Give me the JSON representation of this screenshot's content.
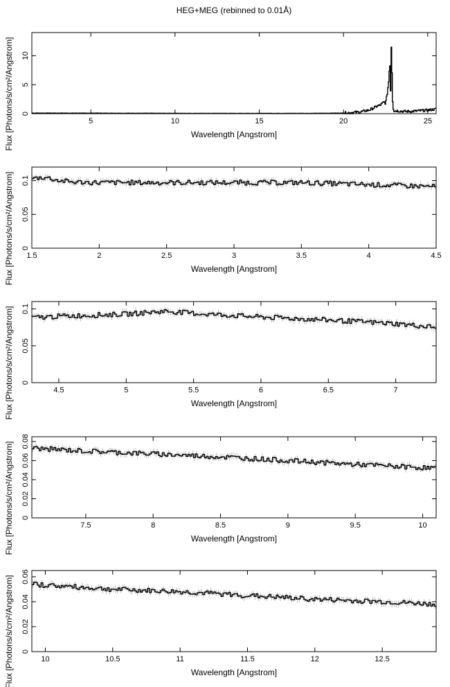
{
  "title": "HEG+MEG (rebinned to 0.01Å)",
  "chart_data": [
    {
      "type": "line",
      "xlabel": "Wavelength [Angstrom]",
      "ylabel": "Flux [Photons/s/cm²/Angstrom]",
      "xlim": [
        1.5,
        25.5
      ],
      "ylim": [
        0,
        14
      ],
      "xticks": [
        5,
        10,
        15,
        20,
        25
      ],
      "yticks": [
        0,
        5,
        10
      ],
      "series": [
        {
          "x": [
            1.5,
            5,
            10,
            15,
            18,
            20,
            20.5,
            21,
            21.5,
            21.8,
            22.0,
            22.2,
            22.4,
            22.5,
            22.6,
            22.7,
            22.75,
            22.8,
            22.85,
            22.9,
            22.95,
            23.0,
            23.2,
            23.5,
            24,
            24.5,
            25,
            25.5
          ],
          "y": [
            0.1,
            0.09,
            0.06,
            0.05,
            0.05,
            0.1,
            0.2,
            0.3,
            0.6,
            1.0,
            1.3,
            1.5,
            2.0,
            1.8,
            3.5,
            6.0,
            9.5,
            4.0,
            13.5,
            3.0,
            1.0,
            0.5,
            0.5,
            0.4,
            0.4,
            0.5,
            0.6,
            0.8
          ]
        }
      ]
    },
    {
      "type": "line",
      "xlabel": "Wavelength [Angstrom]",
      "ylabel": "Flux [Photons/s/cm²/Angstrom]",
      "xlim": [
        1.5,
        4.5
      ],
      "ylim": [
        0,
        0.12
      ],
      "xticks": [
        1.5,
        2,
        2.5,
        3,
        3.5,
        4,
        4.5
      ],
      "yticks": [
        0,
        0.05,
        0.1
      ],
      "series": [
        {
          "x": [
            1.5,
            1.6,
            1.7,
            1.8,
            2.0,
            2.5,
            3.0,
            3.5,
            4.0,
            4.5
          ],
          "y": [
            0.103,
            0.105,
            0.1,
            0.098,
            0.097,
            0.097,
            0.097,
            0.097,
            0.094,
            0.091
          ]
        }
      ]
    },
    {
      "type": "line",
      "xlabel": "Wavelength [Angstrom]",
      "ylabel": "Flux [Photons/s/cm²/Angstrom]",
      "xlim": [
        4.3,
        7.3
      ],
      "ylim": [
        0,
        0.11
      ],
      "xticks": [
        4.5,
        5,
        5.5,
        6,
        6.5,
        7
      ],
      "yticks": [
        0,
        0.05,
        0.1
      ],
      "series": [
        {
          "x": [
            4.3,
            4.5,
            5.0,
            5.3,
            5.5,
            6.0,
            6.5,
            7.0,
            7.3
          ],
          "y": [
            0.088,
            0.09,
            0.093,
            0.097,
            0.094,
            0.089,
            0.085,
            0.08,
            0.075
          ]
        }
      ]
    },
    {
      "type": "line",
      "xlabel": "Wavelength [Angstrom]",
      "ylabel": "Flux [Photons/s/cm²/Angstrom]",
      "xlim": [
        7.1,
        10.1
      ],
      "ylim": [
        0,
        0.085
      ],
      "xticks": [
        7.5,
        8,
        8.5,
        9,
        9.5,
        10
      ],
      "yticks": [
        0,
        0.02,
        0.04,
        0.06,
        0.08
      ],
      "series": [
        {
          "x": [
            7.1,
            7.5,
            8.0,
            8.5,
            9.0,
            9.5,
            10.1
          ],
          "y": [
            0.073,
            0.07,
            0.067,
            0.064,
            0.06,
            0.056,
            0.052
          ]
        }
      ]
    },
    {
      "type": "line",
      "xlabel": "Wavelength [Angstrom]",
      "ylabel": "Flux [Photons/s/cm²/Angstrom]",
      "xlim": [
        9.9,
        12.9
      ],
      "ylim": [
        0,
        0.065
      ],
      "xticks": [
        10,
        10.5,
        11,
        11.5,
        12,
        12.5
      ],
      "yticks": [
        0,
        0.02,
        0.04,
        0.06
      ],
      "series": [
        {
          "x": [
            9.9,
            10.2,
            10.5,
            11.0,
            11.5,
            12.0,
            12.5,
            12.9
          ],
          "y": [
            0.054,
            0.052,
            0.05,
            0.048,
            0.045,
            0.042,
            0.04,
            0.038
          ]
        }
      ]
    }
  ]
}
